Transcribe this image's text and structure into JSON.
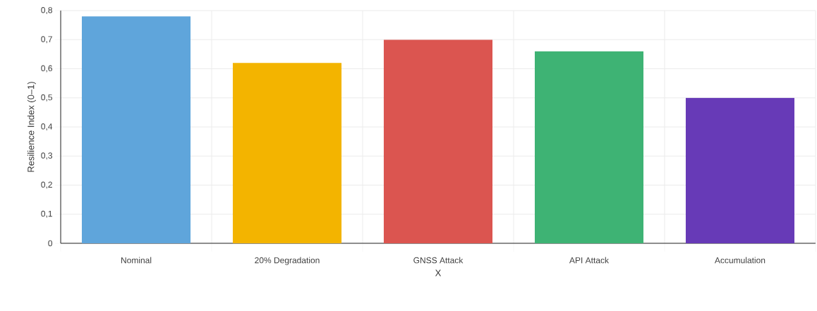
{
  "chart_data": {
    "type": "bar",
    "xlabel": "X",
    "ylabel": "Resilience Index (0–1)",
    "categories": [
      "Nominal",
      "20% Degradation",
      "GNSS Attack",
      "API Attack",
      "Accumulation"
    ],
    "values": [
      0.78,
      0.62,
      0.7,
      0.66,
      0.5
    ],
    "colors": [
      "#5fa5db",
      "#f3b400",
      "#db5550",
      "#3eb374",
      "#673ab7"
    ],
    "ylim": [
      0,
      0.8
    ],
    "yticks": [
      0,
      {
        "value": 0.1,
        "label": "0,1"
      },
      {
        "value": 0.2,
        "label": "0,2"
      },
      {
        "value": 0.3,
        "label": "0,3"
      },
      {
        "value": 0.4,
        "label": "0,4"
      },
      {
        "value": 0.5,
        "label": "0,5"
      },
      {
        "value": 0.6,
        "label": "0,6"
      },
      {
        "value": 0.7,
        "label": "0,7"
      },
      {
        "value": 0.8,
        "label": "0,8"
      }
    ],
    "grid": true
  }
}
